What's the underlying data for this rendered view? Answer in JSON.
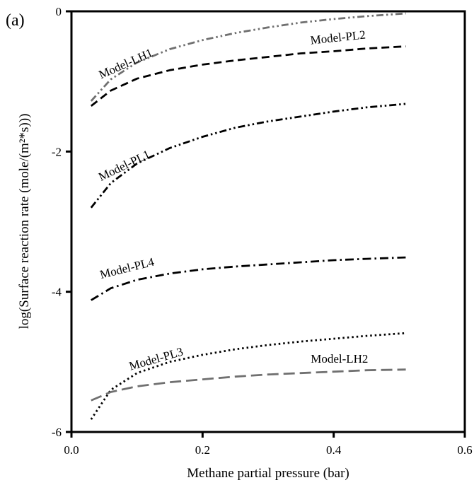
{
  "panel_label": "(a)",
  "chart_data": {
    "type": "line",
    "title": "",
    "xlabel": "Methane partial pressure (bar)",
    "ylabel": "log(Surface reaction rate (mole/(m²*s)))",
    "xlim": [
      0.0,
      0.6
    ],
    "ylim": [
      -6,
      0
    ],
    "xticks": [
      0.0,
      0.2,
      0.4,
      0.6
    ],
    "xtick_labels": [
      "0.0",
      "0.2",
      "0.4",
      "0.6"
    ],
    "yticks": [
      0,
      -2,
      -4,
      -6
    ],
    "ytick_labels": [
      "0",
      "-2",
      "-4",
      "-6"
    ],
    "grid": false,
    "x": [
      0.03,
      0.06,
      0.1,
      0.15,
      0.2,
      0.25,
      0.3,
      0.35,
      0.4,
      0.45,
      0.51
    ],
    "series": [
      {
        "name": "Model-LH1",
        "color": "#707070",
        "dash": "dash-dot-dot",
        "values": [
          -1.28,
          -0.97,
          -0.73,
          -0.54,
          -0.41,
          -0.31,
          -0.23,
          -0.16,
          -0.11,
          -0.07,
          -0.03
        ]
      },
      {
        "name": "Model-PL2",
        "color": "#000000",
        "dash": "dashed",
        "values": [
          -1.35,
          -1.13,
          -0.96,
          -0.84,
          -0.76,
          -0.7,
          -0.65,
          -0.6,
          -0.57,
          -0.53,
          -0.5
        ]
      },
      {
        "name": "Model-PL1",
        "color": "#000000",
        "dash": "dash-dot-dot",
        "values": [
          -2.8,
          -2.45,
          -2.17,
          -1.95,
          -1.79,
          -1.66,
          -1.57,
          -1.5,
          -1.43,
          -1.37,
          -1.32
        ]
      },
      {
        "name": "Model-PL4",
        "color": "#000000",
        "dash": "dash-dot",
        "values": [
          -4.12,
          -3.95,
          -3.83,
          -3.74,
          -3.68,
          -3.64,
          -3.61,
          -3.58,
          -3.55,
          -3.53,
          -3.51
        ]
      },
      {
        "name": "Model-PL3",
        "color": "#000000",
        "dash": "dotted",
        "values": [
          -5.82,
          -5.4,
          -5.16,
          -5.0,
          -4.9,
          -4.82,
          -4.76,
          -4.71,
          -4.67,
          -4.63,
          -4.59
        ]
      },
      {
        "name": "Model-LH2",
        "color": "#707070",
        "dash": "long-dash",
        "values": [
          -5.55,
          -5.43,
          -5.35,
          -5.29,
          -5.25,
          -5.21,
          -5.18,
          -5.16,
          -5.14,
          -5.12,
          -5.11
        ]
      }
    ]
  }
}
